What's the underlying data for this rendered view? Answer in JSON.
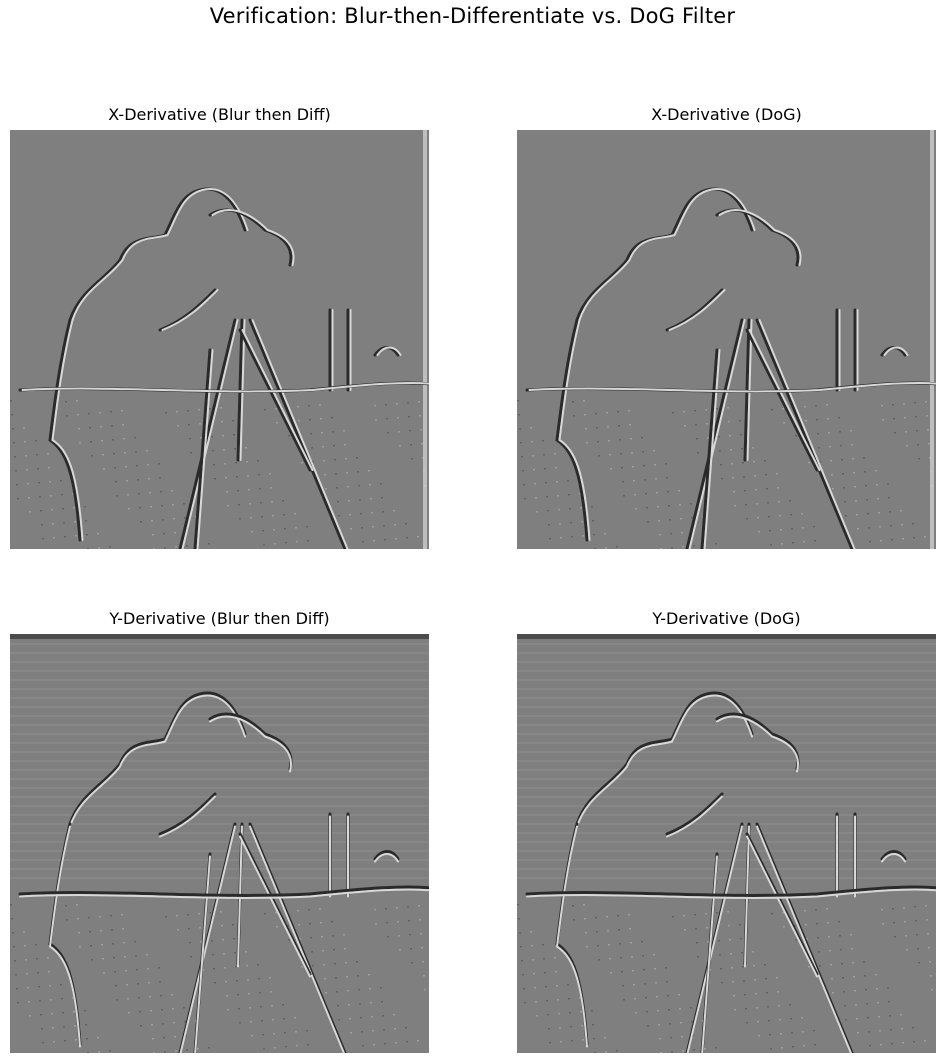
{
  "figure": {
    "suptitle": "Verification: Blur-then-Differentiate vs. DoG Filter",
    "panels": [
      {
        "title": "X-Derivative (Blur then Diff)",
        "kind": "x"
      },
      {
        "title": "X-Derivative (DoG)",
        "kind": "x"
      },
      {
        "title": "Y-Derivative (Blur then Diff)",
        "kind": "y"
      },
      {
        "title": "Y-Derivative (DoG)",
        "kind": "y"
      }
    ],
    "colors": {
      "background_gray": "#7f7f7f",
      "edge_light": "#d8d8d8",
      "edge_dark": "#2a2a2a"
    }
  }
}
